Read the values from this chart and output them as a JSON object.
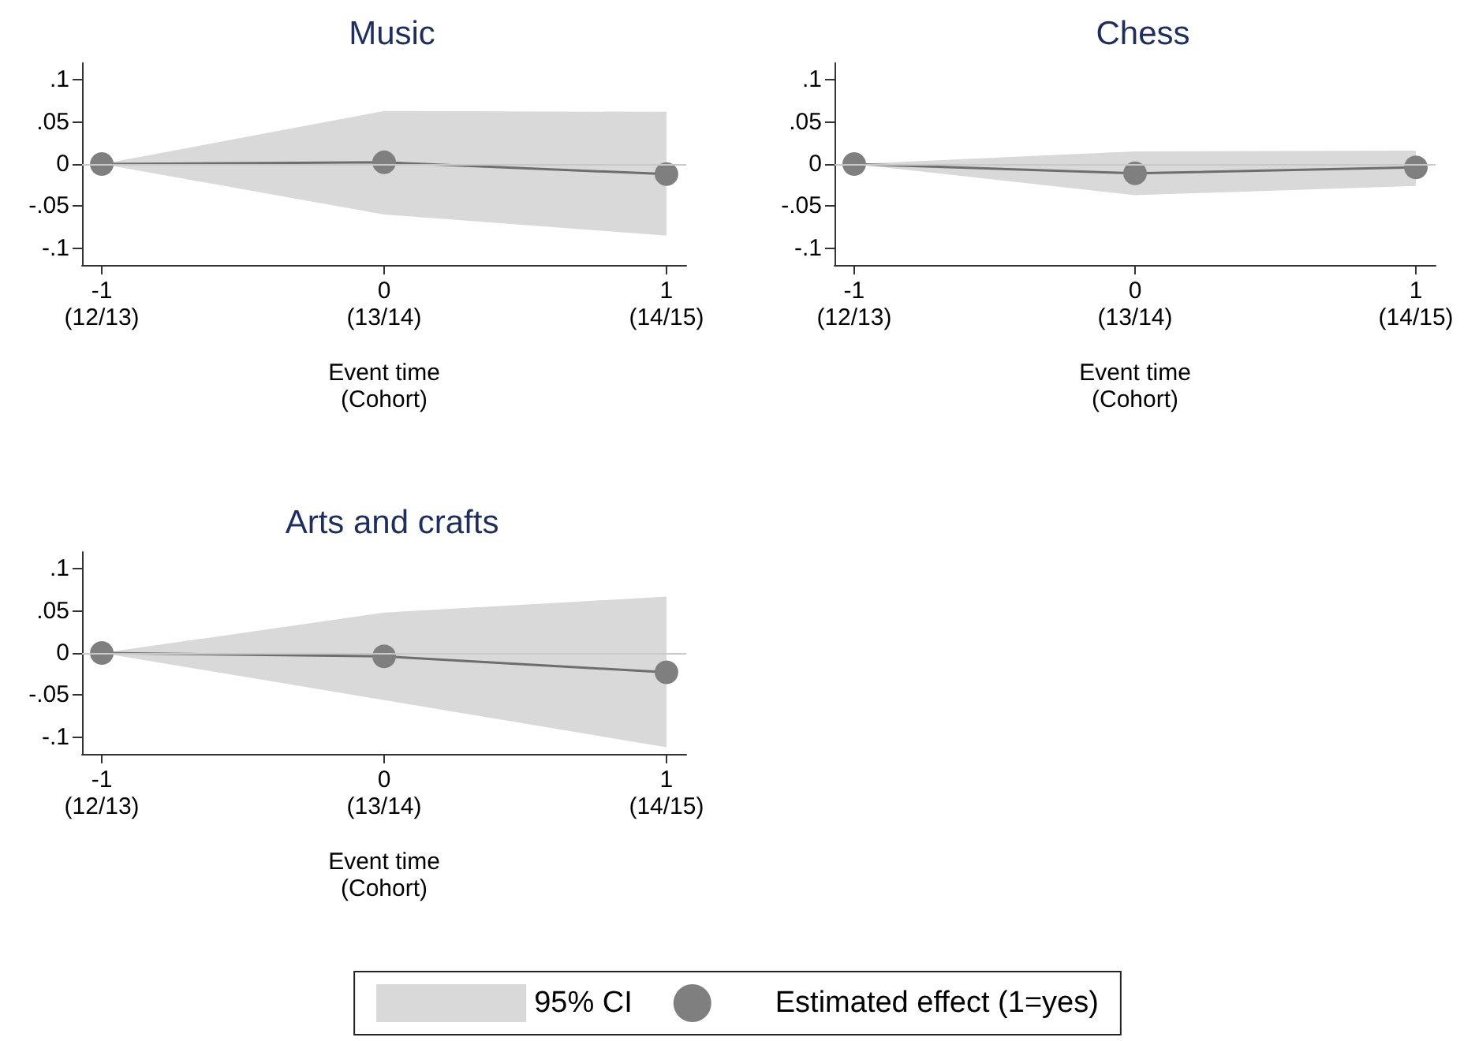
{
  "chart_data": [
    {
      "type": "line",
      "title": "Music",
      "xlabel": "Event time\n(Cohort)",
      "categories": [
        "-1\n(12/13)",
        "0\n(13/14)",
        "1\n(14/15)"
      ],
      "ylim": [
        -0.12,
        0.12
      ],
      "yticks": [
        {
          "value": -0.1,
          "label": "-.1"
        },
        {
          "value": -0.05,
          "label": "-.05"
        },
        {
          "value": 0,
          "label": "0"
        },
        {
          "value": 0.05,
          "label": ".05"
        },
        {
          "value": 0.1,
          "label": ".1"
        }
      ],
      "marker": "circle",
      "line_style": "solid",
      "ref_lines": [
        {
          "axis": "y",
          "value": 0,
          "color": "#c8c8c8"
        }
      ],
      "series": [
        {
          "type": "area",
          "color": "#d9d9d9",
          "values": [
            null,
            null,
            null
          ],
          "lower": [
            0,
            -0.06,
            -0.085
          ],
          "upper": [
            0,
            0.063,
            0.062
          ]
        },
        {
          "color": "#7f7f7f",
          "values": [
            0,
            0.002,
            -0.012
          ]
        }
      ]
    },
    {
      "type": "line",
      "title": "Chess",
      "xlabel": "Event time\n(Cohort)",
      "categories": [
        "-1\n(12/13)",
        "0\n(13/14)",
        "1\n(14/15)"
      ],
      "ylim": [
        -0.12,
        0.12
      ],
      "yticks": [
        {
          "value": -0.1,
          "label": "-.1"
        },
        {
          "value": -0.05,
          "label": "-.05"
        },
        {
          "value": 0,
          "label": "0"
        },
        {
          "value": 0.05,
          "label": ".05"
        },
        {
          "value": 0.1,
          "label": ".1"
        }
      ],
      "marker": "circle",
      "line_style": "solid",
      "ref_lines": [
        {
          "axis": "y",
          "value": 0,
          "color": "#c8c8c8"
        }
      ],
      "series": [
        {
          "type": "area",
          "color": "#d9d9d9",
          "values": [
            null,
            null,
            null
          ],
          "lower": [
            0,
            -0.037,
            -0.026
          ],
          "upper": [
            0,
            0.015,
            0.016
          ]
        },
        {
          "color": "#7f7f7f",
          "values": [
            0,
            -0.011,
            -0.004
          ]
        }
      ]
    },
    {
      "type": "line",
      "title": "Arts and crafts",
      "xlabel": "Event time\n(Cohort)",
      "categories": [
        "-1\n(12/13)",
        "0\n(13/14)",
        "1\n(14/15)"
      ],
      "ylim": [
        -0.12,
        0.12
      ],
      "yticks": [
        {
          "value": -0.1,
          "label": "-.1"
        },
        {
          "value": -0.05,
          "label": "-.05"
        },
        {
          "value": 0,
          "label": "0"
        },
        {
          "value": 0.05,
          "label": ".05"
        },
        {
          "value": 0.1,
          "label": ".1"
        }
      ],
      "marker": "circle",
      "line_style": "solid",
      "legend": "bottom",
      "ref_lines": [
        {
          "axis": "y",
          "value": 0,
          "color": "#c8c8c8"
        }
      ],
      "series": [
        {
          "name": "95% CI",
          "type": "area",
          "color": "#d9d9d9",
          "values": [
            null,
            null,
            null
          ],
          "lower": [
            0,
            -0.056,
            -0.112
          ],
          "upper": [
            0,
            0.048,
            0.067
          ]
        },
        {
          "name": "Estimated effect (1=yes)",
          "color": "#7f7f7f",
          "values": [
            0,
            -0.004,
            -0.023
          ]
        }
      ]
    }
  ]
}
